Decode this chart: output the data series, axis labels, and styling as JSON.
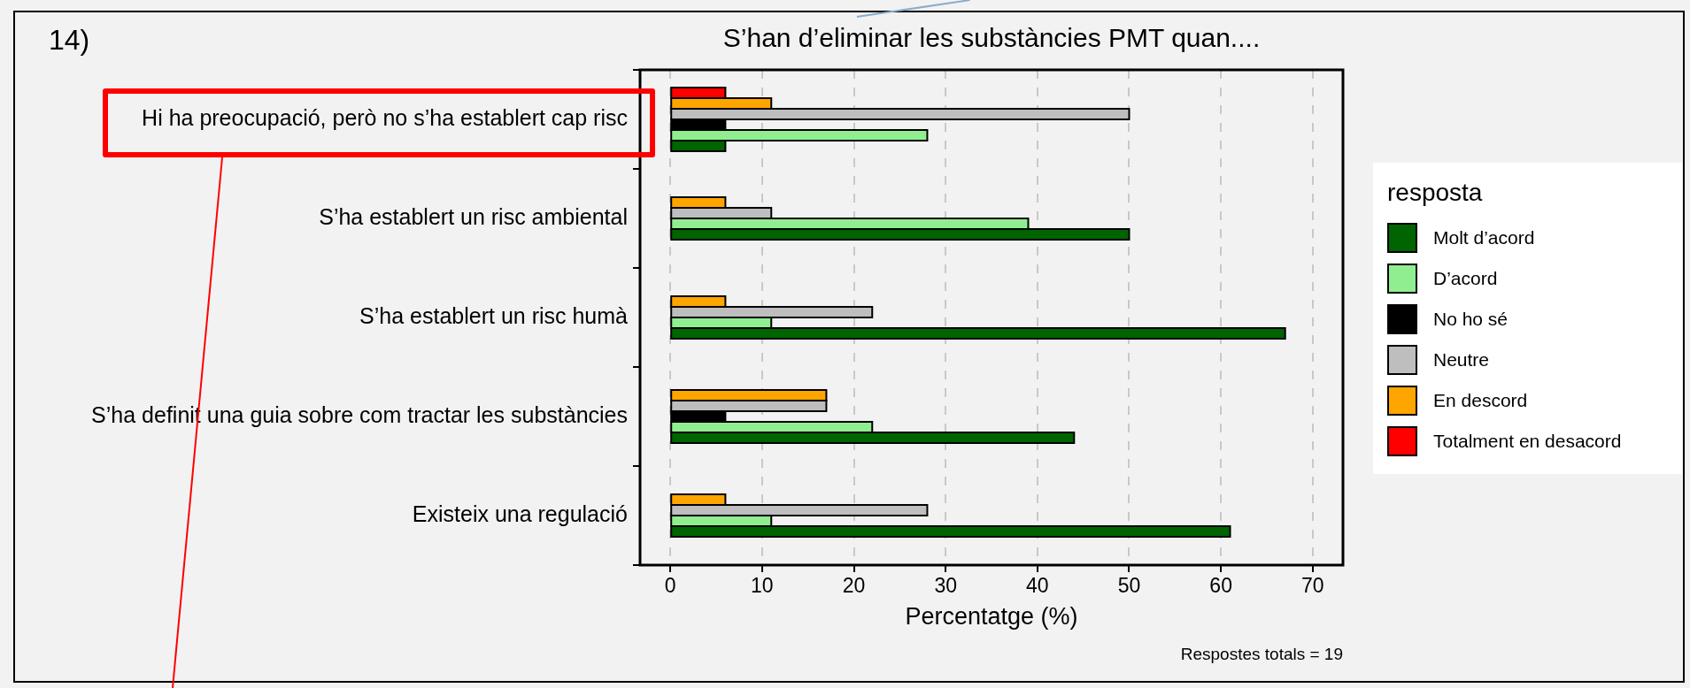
{
  "chart_data": {
    "type": "bar",
    "orientation": "horizontal",
    "title": "S’han d’eliminar les substàncies PMT quan....",
    "xlabel": "Percentatge (%)",
    "legend_title": "resposta",
    "categories": [
      "Hi ha preocupació, però no s’ha establert cap risc",
      "S’ha establert un risc ambiental",
      "S’ha establert un risc humà",
      "S’ha definit una guia sobre com tractar les substàncies",
      "Existeix una regulació"
    ],
    "series": [
      {
        "name": "Totalment en desacord",
        "color": "#ff0000",
        "values": [
          6,
          null,
          null,
          null,
          null
        ]
      },
      {
        "name": "En descord",
        "color": "#ffa500",
        "values": [
          11,
          6,
          6,
          17,
          6
        ]
      },
      {
        "name": "Neutre",
        "color": "#bebebe",
        "values": [
          50,
          11,
          22,
          17,
          28
        ]
      },
      {
        "name": "No ho sé",
        "color": "#000000",
        "values": [
          6,
          null,
          null,
          6,
          null
        ]
      },
      {
        "name": "D’acord",
        "color": "#90ee90",
        "values": [
          28,
          39,
          11,
          22,
          11
        ]
      },
      {
        "name": "Molt d’acord",
        "color": "#006400",
        "values": [
          6,
          50,
          67,
          44,
          61
        ]
      }
    ],
    "xlim": [
      -3.3,
      73.3
    ],
    "xticks": [
      0,
      10,
      20,
      30,
      40,
      50,
      60,
      70
    ],
    "grid": "x",
    "legend": "right",
    "annotations": [
      "14)",
      "Respostes totals = 19"
    ]
  }
}
